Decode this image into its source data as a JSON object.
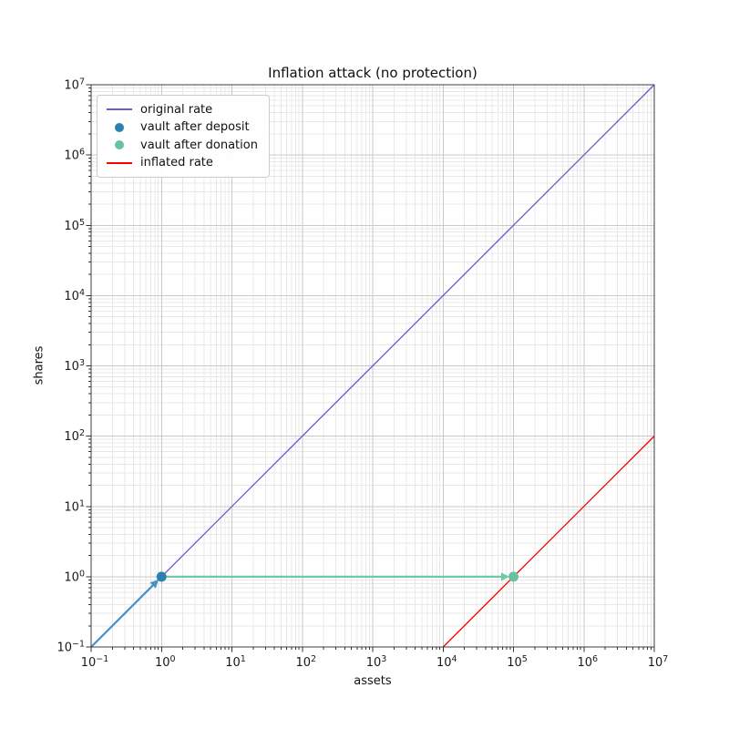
{
  "chart_data": {
    "type": "line",
    "title": "Inflation attack (no protection)",
    "xlabel": "assets",
    "ylabel": "shares",
    "x_scale": "log",
    "y_scale": "log",
    "x_log_range": [
      -1,
      7
    ],
    "y_log_range": [
      -1,
      7
    ],
    "x_tick_exponents": [
      -1,
      0,
      1,
      2,
      3,
      4,
      5,
      6,
      7
    ],
    "y_tick_exponents": [
      -1,
      0,
      1,
      2,
      3,
      4,
      5,
      6,
      7
    ],
    "grid": {
      "major_color": "#c9c9c9",
      "minor_color": "#e8e8e8",
      "major_on": true,
      "minor_on": true
    },
    "axis": {
      "spine_color": "#3c3c3c",
      "tick_color": "#333333",
      "tick_label_color": "#1a1a1a"
    },
    "series": [
      {
        "name": "original rate",
        "type": "line",
        "color": "#6a5acd",
        "width": 1.3,
        "points": [
          [
            0.1,
            0.1
          ],
          [
            10000000,
            10000000
          ]
        ]
      },
      {
        "name": "inflated rate",
        "type": "line",
        "color": "#ff0000",
        "width": 1.3,
        "points": [
          [
            10000,
            0.1
          ],
          [
            10000000,
            100
          ]
        ]
      },
      {
        "name": "vault after deposit",
        "type": "scatter",
        "color": "#2d7fb0",
        "radius": 5.5,
        "points": [
          [
            1,
            1
          ]
        ]
      },
      {
        "name": "vault after donation",
        "type": "scatter",
        "color": "#66c2a2",
        "radius": 5.5,
        "points": [
          [
            100000,
            1
          ]
        ]
      }
    ],
    "annotations": [
      {
        "name": "deposit-arrow",
        "type": "arrow",
        "color": "#4691c6",
        "width": 2.2,
        "from": [
          0.1,
          0.1
        ],
        "to": [
          1,
          1
        ]
      },
      {
        "name": "donation-arrow",
        "type": "arrow",
        "color": "#6fc9a6",
        "width": 2.2,
        "from": [
          1,
          1
        ],
        "to": [
          100000,
          1
        ]
      }
    ],
    "legend": {
      "position": "upper-left",
      "entries": [
        {
          "label": "original rate",
          "marker": "line",
          "color": "#6a5acd"
        },
        {
          "label": "vault after deposit",
          "marker": "dot",
          "color": "#2d7fb0"
        },
        {
          "label": "vault after donation",
          "marker": "dot",
          "color": "#66c2a2"
        },
        {
          "label": "inflated rate",
          "marker": "line",
          "color": "#ff0000"
        }
      ]
    }
  }
}
